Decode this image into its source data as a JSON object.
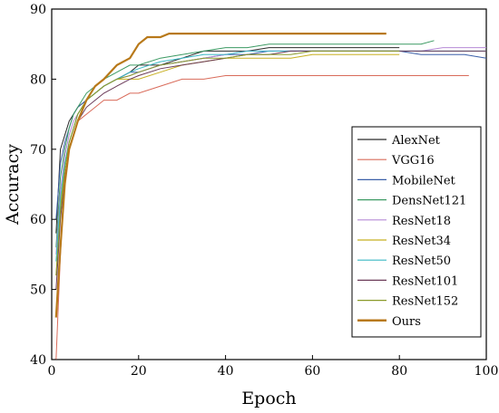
{
  "chart_data": {
    "type": "line",
    "title": "",
    "xlabel": "Epoch",
    "ylabel": "Accuracy",
    "xlim": [
      0,
      100
    ],
    "ylim": [
      40,
      90
    ],
    "xticks": [
      0,
      20,
      40,
      60,
      80,
      100
    ],
    "yticks": [
      40,
      50,
      60,
      70,
      80,
      90
    ],
    "grid": false,
    "legend_position": "right",
    "series": [
      {
        "name": "AlexNet",
        "color": "#2b2b2b",
        "x": [
          1,
          2,
          3,
          4,
          5,
          6,
          8,
          10,
          12,
          15,
          18,
          20,
          25,
          30,
          35,
          40,
          45,
          50,
          55,
          60,
          65,
          70,
          75,
          80
        ],
        "y": [
          58,
          70,
          72,
          74,
          75,
          76,
          77,
          78,
          79,
          80,
          81,
          82,
          82,
          83,
          84,
          84,
          84,
          84.5,
          84.5,
          84.5,
          84.5,
          84.5,
          84.5,
          84.5
        ]
      },
      {
        "name": "VGG16",
        "color": "#d96b5a",
        "x": [
          1,
          2,
          3,
          4,
          5,
          6,
          8,
          10,
          12,
          15,
          18,
          20,
          25,
          30,
          35,
          40,
          45,
          50,
          55,
          60,
          65,
          70,
          75,
          80,
          85,
          90,
          96
        ],
        "y": [
          40,
          55,
          66,
          70,
          72,
          74,
          75,
          76,
          77,
          77,
          78,
          78,
          79,
          80,
          80,
          80.5,
          80.5,
          80.5,
          80.5,
          80.5,
          80.5,
          80.5,
          80.5,
          80.5,
          80.5,
          80.5,
          80.5
        ]
      },
      {
        "name": "MobileNet",
        "color": "#3a5fa8",
        "x": [
          1,
          2,
          3,
          4,
          5,
          6,
          8,
          10,
          12,
          15,
          18,
          20,
          25,
          30,
          35,
          40,
          45,
          50,
          55,
          60,
          65,
          70,
          75,
          80,
          85,
          90,
          95,
          100
        ],
        "y": [
          60,
          68,
          71,
          73,
          75,
          76,
          77,
          78,
          79,
          80,
          81,
          81,
          82,
          82.5,
          83,
          83.5,
          83.5,
          84,
          84,
          84,
          84,
          84,
          84,
          84,
          83.5,
          83.5,
          83.5,
          83
        ]
      },
      {
        "name": "DensNet121",
        "color": "#3c9a63",
        "x": [
          1,
          2,
          3,
          4,
          5,
          6,
          8,
          10,
          12,
          15,
          18,
          20,
          25,
          30,
          35,
          40,
          45,
          50,
          55,
          60,
          65,
          70,
          75,
          80,
          85,
          88
        ],
        "y": [
          56,
          66,
          70,
          73,
          75,
          76,
          78,
          79,
          80,
          81,
          82,
          82,
          83,
          83.5,
          84,
          84.5,
          84.5,
          85,
          85,
          85,
          85,
          85,
          85,
          85,
          85,
          85.5
        ]
      },
      {
        "name": "ResNet18",
        "color": "#b68ad6",
        "x": [
          1,
          2,
          3,
          4,
          5,
          6,
          8,
          10,
          12,
          15,
          18,
          20,
          25,
          30,
          35,
          40,
          45,
          50,
          55,
          60,
          65,
          70,
          75,
          80,
          85,
          90,
          95,
          100
        ],
        "y": [
          55,
          64,
          69,
          72,
          74,
          75,
          77,
          78,
          79,
          80,
          80.5,
          81,
          82,
          82.5,
          83,
          83.5,
          84,
          84,
          84,
          84,
          84,
          84,
          84,
          84,
          84,
          84.5,
          84.5,
          84.5
        ]
      },
      {
        "name": "ResNet34",
        "color": "#c8b020",
        "x": [
          1,
          2,
          3,
          4,
          5,
          6,
          8,
          10,
          12,
          15,
          18,
          20,
          25,
          30,
          35,
          40,
          45,
          50,
          55,
          60,
          65,
          70,
          75,
          80
        ],
        "y": [
          52,
          62,
          68,
          71,
          73,
          75,
          77,
          78,
          79,
          80,
          80,
          80,
          81,
          82,
          82.5,
          83,
          83,
          83,
          83,
          83.5,
          83.5,
          83.5,
          83.5,
          83.5
        ]
      },
      {
        "name": "ResNet50",
        "color": "#3ab8c4",
        "x": [
          1,
          2,
          3,
          4,
          5,
          6,
          8,
          10,
          12,
          15,
          18,
          20,
          25,
          30,
          35,
          40,
          45,
          50,
          55,
          60,
          65,
          70,
          75,
          80,
          85,
          90,
          95,
          100
        ],
        "y": [
          54,
          63,
          68,
          71,
          73,
          75,
          77,
          78,
          79,
          80,
          81,
          81.5,
          82.5,
          83,
          83.5,
          83.5,
          84,
          84,
          84,
          84,
          84,
          84,
          84,
          84,
          84,
          84,
          84,
          84
        ]
      },
      {
        "name": "ResNet101",
        "color": "#6b3a58",
        "x": [
          1,
          2,
          3,
          4,
          5,
          6,
          8,
          10,
          12,
          15,
          18,
          20,
          25,
          30,
          35,
          40,
          45,
          50,
          55,
          60,
          65,
          70,
          75,
          80,
          85,
          90,
          95,
          100
        ],
        "y": [
          50,
          60,
          66,
          70,
          72,
          74,
          76,
          77,
          78,
          79,
          80,
          80.5,
          81.5,
          82,
          82.5,
          83,
          83.5,
          83.5,
          84,
          84,
          84,
          84,
          84,
          84,
          84,
          84,
          84,
          84
        ]
      },
      {
        "name": "ResNet152",
        "color": "#8a9a2a",
        "x": [
          1,
          2,
          3,
          4,
          5,
          6,
          8,
          10,
          12,
          15,
          18,
          20,
          25,
          30,
          35,
          40,
          45,
          50,
          55,
          60,
          65,
          70,
          75,
          80
        ],
        "y": [
          52,
          61,
          67,
          71,
          73,
          75,
          77,
          78,
          79,
          80,
          80.5,
          81,
          82,
          82.5,
          83,
          83,
          83.5,
          83.5,
          83.5,
          84,
          84,
          84,
          84,
          84
        ]
      },
      {
        "name": "Ours",
        "color": "#b8791a",
        "x": [
          1,
          2,
          3,
          4,
          5,
          6,
          8,
          10,
          12,
          15,
          18,
          20,
          22,
          25,
          27,
          30,
          35,
          40,
          45,
          50,
          55,
          60,
          65,
          70,
          75,
          77
        ],
        "y": [
          46,
          56,
          65,
          70,
          72,
          74,
          77,
          79,
          80,
          82,
          83,
          85,
          86,
          86,
          86.5,
          86.5,
          86.5,
          86.5,
          86.5,
          86.5,
          86.5,
          86.5,
          86.5,
          86.5,
          86.5,
          86.5
        ]
      }
    ]
  }
}
